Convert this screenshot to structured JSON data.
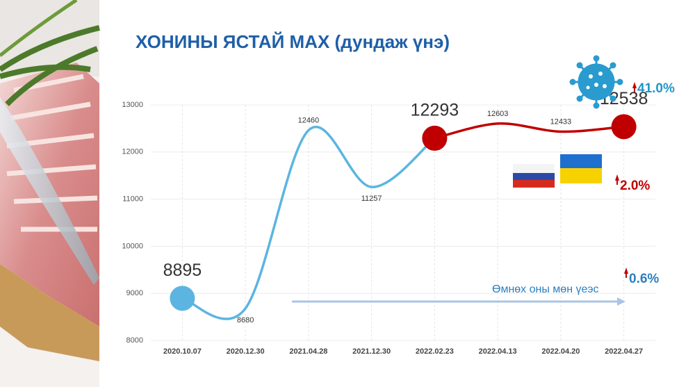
{
  "chart_data": {
    "type": "line",
    "title": "ХОНИНЫ ЯСТАЙ МАХ (дундаж үнэ)",
    "categories": [
      "2020.10.07",
      "2020.12.30",
      "2021.04.28",
      "2021.12.30",
      "2022.02.23",
      "2022.04.13",
      "2022.04.20",
      "2022.04.27"
    ],
    "series": [
      {
        "color": "#5bb5e0",
        "values": [
          8895,
          8680,
          12460,
          11257,
          12293,
          null,
          null,
          null
        ]
      },
      {
        "color": "#c00000",
        "values": [
          null,
          null,
          null,
          null,
          12293,
          12603,
          12433,
          12538
        ]
      }
    ],
    "ylim": [
      8000,
      13000
    ],
    "yticks": [
      8000,
      9000,
      10000,
      11000,
      12000,
      13000
    ],
    "grid": true,
    "annotations": {
      "covid": "41.0%",
      "war": "2.0%",
      "yoy": "0.6%",
      "yoy_label": "Өмнөх оны мөн үеэс"
    }
  }
}
